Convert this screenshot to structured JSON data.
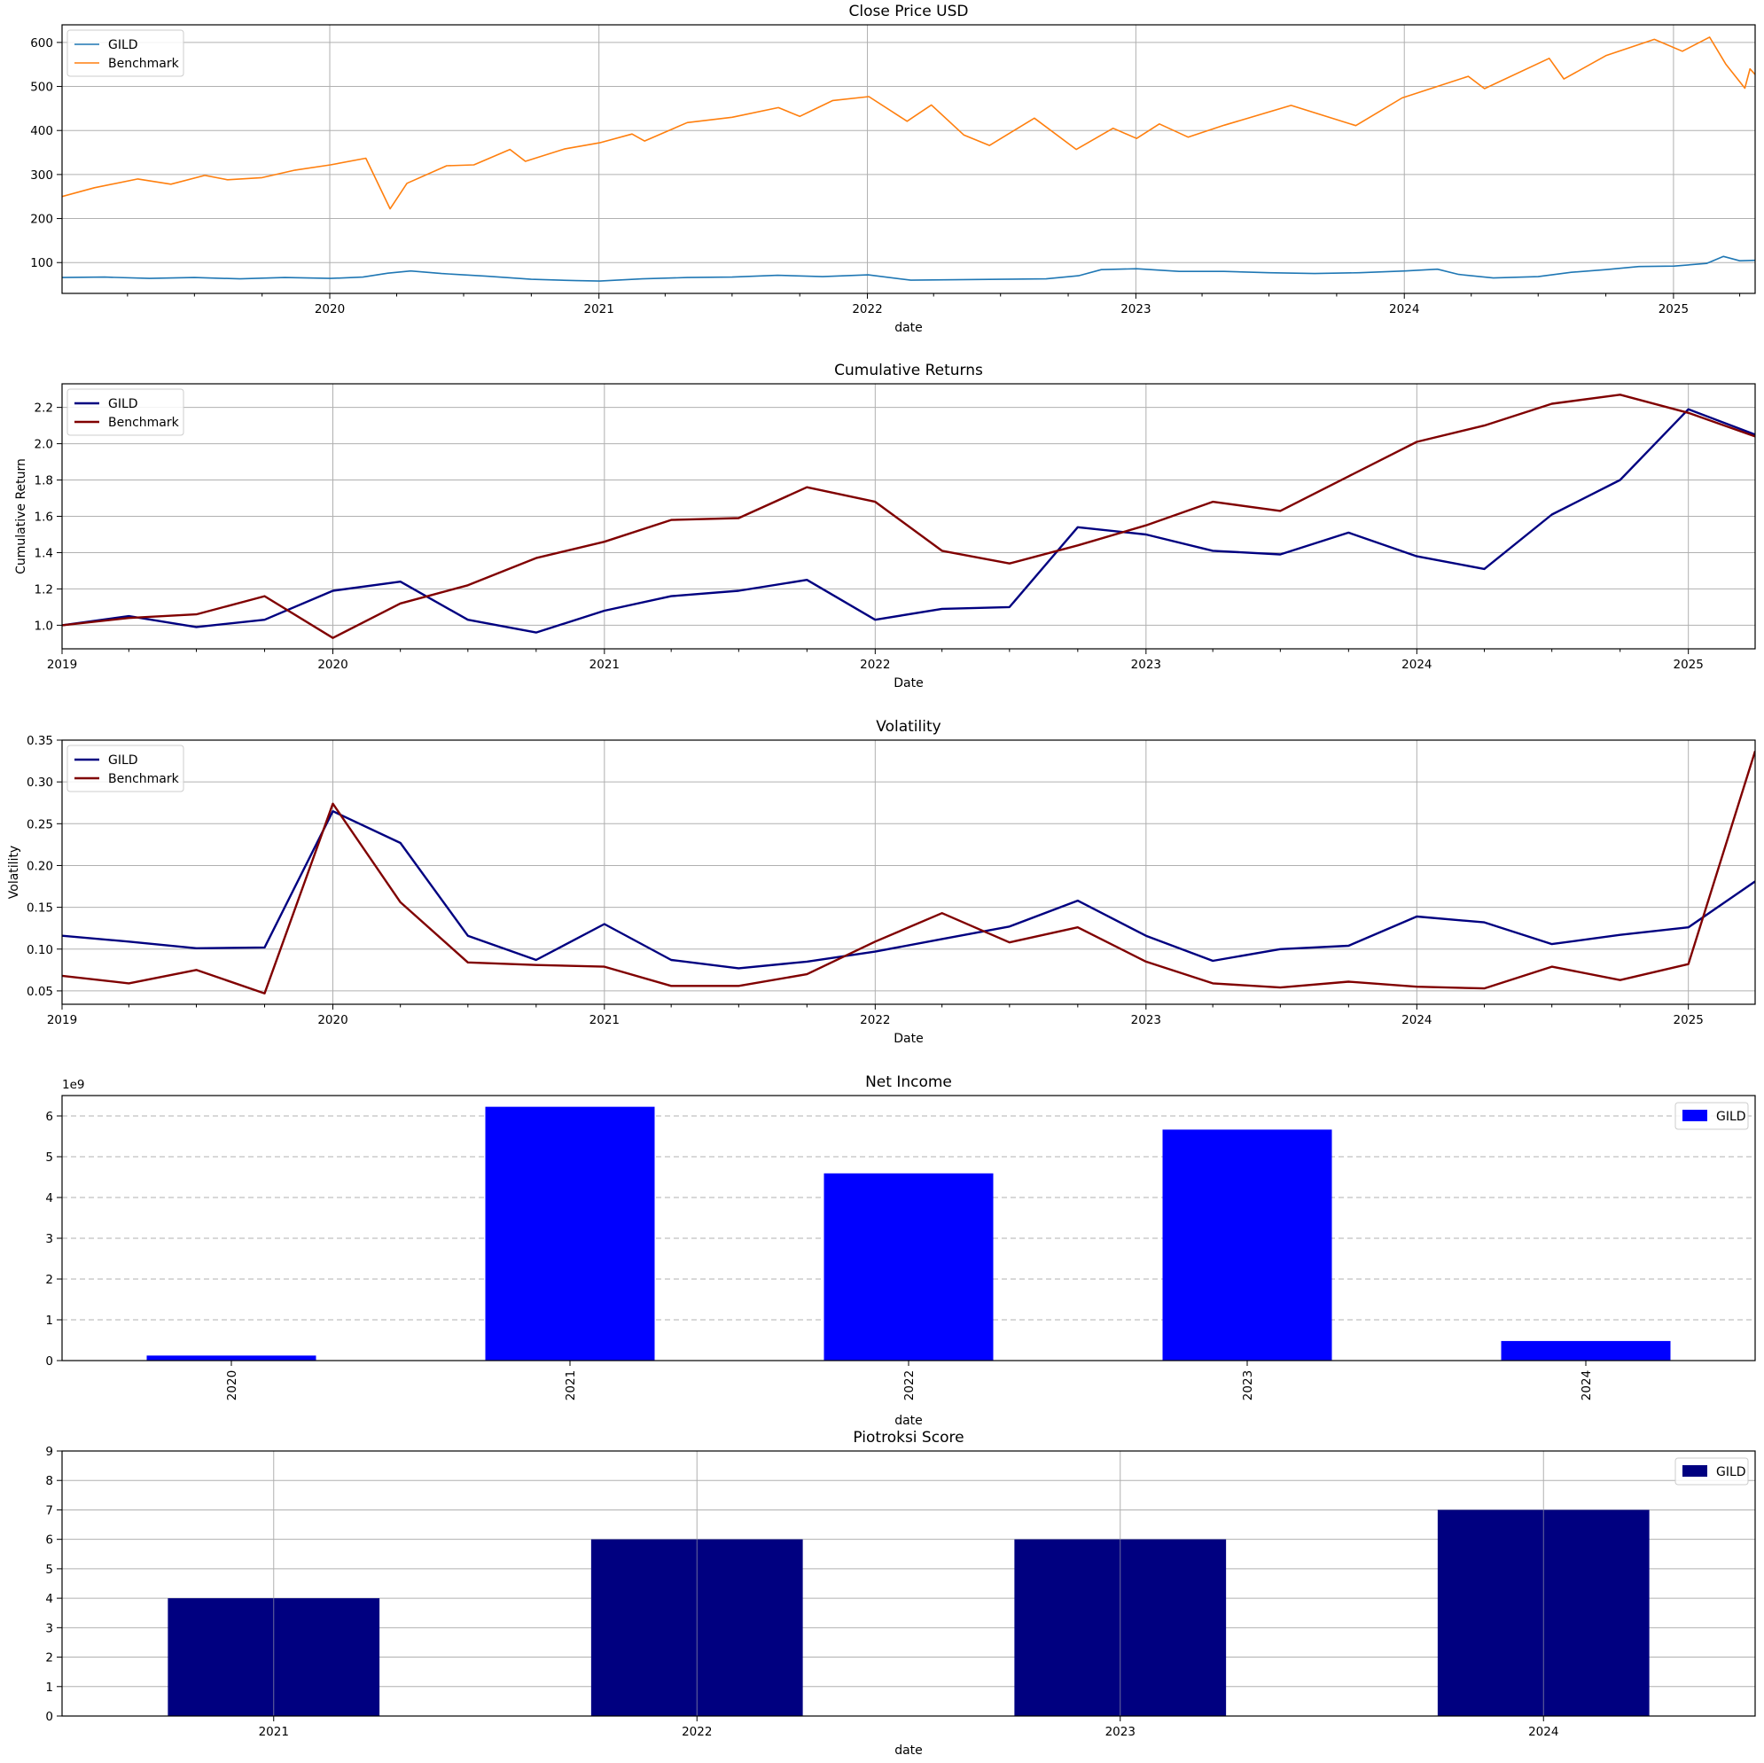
{
  "chart_data": [
    {
      "type": "line",
      "title": "Close Price USD",
      "xlabel": "date",
      "ylabel": "",
      "ylim": [
        30,
        640
      ],
      "yticks": [
        100,
        200,
        300,
        400,
        500,
        600
      ],
      "x_tick_labels": [
        "2020",
        "2021",
        "2022",
        "2023",
        "2024",
        "2025"
      ],
      "grid": true,
      "legend_position": "top-left",
      "series": [
        {
          "name": "GILD",
          "color": "#1f77b4",
          "points": [
            [
              "2019-01-02",
              66
            ],
            [
              "2019-03-01",
              67
            ],
            [
              "2019-05-01",
              64
            ],
            [
              "2019-07-01",
              66
            ],
            [
              "2019-09-01",
              63
            ],
            [
              "2019-11-01",
              66
            ],
            [
              "2020-01-02",
              64
            ],
            [
              "2020-02-15",
              67
            ],
            [
              "2020-03-20",
              76
            ],
            [
              "2020-04-20",
              81
            ],
            [
              "2020-06-01",
              75
            ],
            [
              "2020-08-01",
              69
            ],
            [
              "2020-10-01",
              62
            ],
            [
              "2020-12-01",
              59
            ],
            [
              "2021-01-02",
              58
            ],
            [
              "2021-03-01",
              63
            ],
            [
              "2021-05-01",
              66
            ],
            [
              "2021-07-01",
              67
            ],
            [
              "2021-09-01",
              71
            ],
            [
              "2021-11-01",
              68
            ],
            [
              "2022-01-02",
              72
            ],
            [
              "2022-03-01",
              60
            ],
            [
              "2022-05-01",
              61
            ],
            [
              "2022-07-01",
              62
            ],
            [
              "2022-09-01",
              63
            ],
            [
              "2022-10-15",
              70
            ],
            [
              "2022-11-15",
              84
            ],
            [
              "2023-01-02",
              86
            ],
            [
              "2023-03-01",
              80
            ],
            [
              "2023-05-01",
              80
            ],
            [
              "2023-07-01",
              77
            ],
            [
              "2023-09-01",
              75
            ],
            [
              "2023-11-01",
              77
            ],
            [
              "2024-01-02",
              81
            ],
            [
              "2024-02-15",
              85
            ],
            [
              "2024-03-15",
              73
            ],
            [
              "2024-05-01",
              65
            ],
            [
              "2024-07-01",
              68
            ],
            [
              "2024-08-15",
              78
            ],
            [
              "2024-10-01",
              84
            ],
            [
              "2024-11-15",
              91
            ],
            [
              "2025-01-02",
              92
            ],
            [
              "2025-02-15",
              98
            ],
            [
              "2025-03-10",
              114
            ],
            [
              "2025-04-01",
              104
            ],
            [
              "2025-04-22",
              105
            ]
          ]
        },
        {
          "name": "Benchmark",
          "color": "#ff7f0e",
          "points": [
            [
              "2019-01-02",
              250
            ],
            [
              "2019-02-15",
              270
            ],
            [
              "2019-04-15",
              290
            ],
            [
              "2019-05-30",
              278
            ],
            [
              "2019-07-15",
              298
            ],
            [
              "2019-08-15",
              288
            ],
            [
              "2019-10-01",
              293
            ],
            [
              "2019-11-15",
              310
            ],
            [
              "2020-01-02",
              322
            ],
            [
              "2020-02-19",
              337
            ],
            [
              "2020-03-23",
              222
            ],
            [
              "2020-04-15",
              280
            ],
            [
              "2020-06-08",
              320
            ],
            [
              "2020-07-15",
              322
            ],
            [
              "2020-09-02",
              357
            ],
            [
              "2020-09-23",
              330
            ],
            [
              "2020-11-15",
              358
            ],
            [
              "2021-01-02",
              372
            ],
            [
              "2021-02-15",
              392
            ],
            [
              "2021-03-04",
              376
            ],
            [
              "2021-05-01",
              418
            ],
            [
              "2021-07-01",
              430
            ],
            [
              "2021-09-02",
              452
            ],
            [
              "2021-10-01",
              432
            ],
            [
              "2021-11-15",
              468
            ],
            [
              "2022-01-03",
              477
            ],
            [
              "2022-02-24",
              421
            ],
            [
              "2022-03-29",
              458
            ],
            [
              "2022-05-12",
              390
            ],
            [
              "2022-06-16",
              366
            ],
            [
              "2022-08-16",
              428
            ],
            [
              "2022-10-12",
              357
            ],
            [
              "2022-12-01",
              405
            ],
            [
              "2023-01-02",
              382
            ],
            [
              "2023-02-02",
              415
            ],
            [
              "2023-03-13",
              385
            ],
            [
              "2023-05-01",
              412
            ],
            [
              "2023-07-31",
              457
            ],
            [
              "2023-10-27",
              411
            ],
            [
              "2023-12-29",
              474
            ],
            [
              "2024-03-28",
              523
            ],
            [
              "2024-04-19",
              495
            ],
            [
              "2024-07-16",
              564
            ],
            [
              "2024-08-05",
              517
            ],
            [
              "2024-10-01",
              570
            ],
            [
              "2024-12-06",
              607
            ],
            [
              "2025-01-13",
              580
            ],
            [
              "2025-02-19",
              612
            ],
            [
              "2025-03-13",
              551
            ],
            [
              "2025-04-08",
              496
            ],
            [
              "2025-04-15",
              540
            ],
            [
              "2025-04-22",
              527
            ]
          ]
        }
      ]
    },
    {
      "type": "line",
      "title": "Cumulative Returns",
      "xlabel": "Date",
      "ylabel": "Cumulative Return",
      "ylim": [
        0.87,
        2.33
      ],
      "yticks": [
        "1.0",
        "1.2",
        "1.4",
        "1.6",
        "1.8",
        "2.0",
        "2.2"
      ],
      "x_tick_labels": [
        "2019",
        "2020",
        "2021",
        "2022",
        "2023",
        "2024",
        "2025"
      ],
      "grid": true,
      "legend_position": "top-left",
      "x": [
        "2019-01-01",
        "2019-04-01",
        "2019-07-01",
        "2019-10-01",
        "2020-01-01",
        "2020-04-01",
        "2020-07-01",
        "2020-10-01",
        "2021-01-01",
        "2021-04-01",
        "2021-07-01",
        "2021-10-01",
        "2022-01-01",
        "2022-04-01",
        "2022-07-01",
        "2022-10-01",
        "2023-01-01",
        "2023-04-01",
        "2023-07-01",
        "2023-10-01",
        "2024-01-01",
        "2024-04-01",
        "2024-07-01",
        "2024-10-01",
        "2025-01-01",
        "2025-04-01"
      ],
      "series": [
        {
          "name": "GILD",
          "color": "#000080",
          "values": [
            1.0,
            1.05,
            0.99,
            1.03,
            1.19,
            1.24,
            1.03,
            0.96,
            1.08,
            1.16,
            1.19,
            1.25,
            1.03,
            1.09,
            1.1,
            1.54,
            1.5,
            1.41,
            1.39,
            1.51,
            1.38,
            1.31,
            1.61,
            1.8,
            2.19,
            2.05
          ]
        },
        {
          "name": "Benchmark",
          "color": "#800000",
          "values": [
            1.0,
            1.04,
            1.06,
            1.16,
            0.93,
            1.12,
            1.22,
            1.37,
            1.46,
            1.58,
            1.59,
            1.76,
            1.68,
            1.41,
            1.34,
            1.44,
            1.55,
            1.68,
            1.63,
            1.82,
            2.01,
            2.1,
            2.22,
            2.27,
            2.17,
            2.04
          ]
        }
      ]
    },
    {
      "type": "line",
      "title": "Volatility",
      "xlabel": "Date",
      "ylabel": "Volatility",
      "ylim": [
        0.034,
        0.35
      ],
      "yticks": [
        "0.05",
        "0.10",
        "0.15",
        "0.20",
        "0.25",
        "0.30",
        "0.35"
      ],
      "x_tick_labels": [
        "2019",
        "2020",
        "2021",
        "2022",
        "2023",
        "2024",
        "2025"
      ],
      "grid": true,
      "legend_position": "top-left",
      "x": [
        "2019-01-01",
        "2019-04-01",
        "2019-07-01",
        "2019-10-01",
        "2020-01-01",
        "2020-04-01",
        "2020-07-01",
        "2020-10-01",
        "2021-01-01",
        "2021-04-01",
        "2021-07-01",
        "2021-10-01",
        "2022-01-01",
        "2022-04-01",
        "2022-07-01",
        "2022-10-01",
        "2023-01-01",
        "2023-04-01",
        "2023-07-01",
        "2023-10-01",
        "2024-01-01",
        "2024-04-01",
        "2024-07-01",
        "2024-10-01",
        "2025-01-01",
        "2025-04-01"
      ],
      "series": [
        {
          "name": "GILD",
          "color": "#000080",
          "values": [
            0.116,
            0.109,
            0.101,
            0.102,
            0.265,
            0.227,
            0.116,
            0.087,
            0.13,
            0.087,
            0.077,
            0.085,
            0.097,
            0.112,
            0.127,
            0.158,
            0.116,
            0.086,
            0.1,
            0.104,
            0.139,
            0.132,
            0.106,
            0.117,
            0.126,
            0.181
          ]
        },
        {
          "name": "Benchmark",
          "color": "#800000",
          "values": [
            0.068,
            0.059,
            0.075,
            0.047,
            0.274,
            0.156,
            0.084,
            0.081,
            0.079,
            0.056,
            0.056,
            0.07,
            0.109,
            0.143,
            0.108,
            0.126,
            0.085,
            0.059,
            0.054,
            0.061,
            0.055,
            0.053,
            0.079,
            0.063,
            0.082,
            0.337
          ]
        }
      ]
    },
    {
      "type": "bar",
      "title": "Net Income",
      "xlabel": "date",
      "ylabel": "",
      "y_offset_label": "1e9",
      "ylim": [
        0,
        6.5
      ],
      "yticks": [
        "0",
        "1",
        "2",
        "3",
        "4",
        "5",
        "6"
      ],
      "categories": [
        "2020",
        "2021",
        "2022",
        "2023",
        "2024"
      ],
      "legend_position": "top-right",
      "grid": "dashed-horizontal",
      "series": [
        {
          "name": "GILD",
          "color": "#0000ff",
          "values": [
            0.123,
            6.225,
            4.592,
            5.665,
            0.48
          ]
        }
      ]
    },
    {
      "type": "bar",
      "title": "Piotroksi Score",
      "xlabel": "date",
      "ylabel": "",
      "ylim": [
        0,
        9
      ],
      "yticks": [
        "0",
        "1",
        "2",
        "3",
        "4",
        "5",
        "6",
        "7",
        "8",
        "9"
      ],
      "categories": [
        "2021",
        "2022",
        "2023",
        "2024"
      ],
      "legend_position": "top-right",
      "grid": true,
      "series": [
        {
          "name": "GILD",
          "color": "#000080",
          "values": [
            4,
            6,
            6,
            7
          ]
        }
      ]
    }
  ]
}
